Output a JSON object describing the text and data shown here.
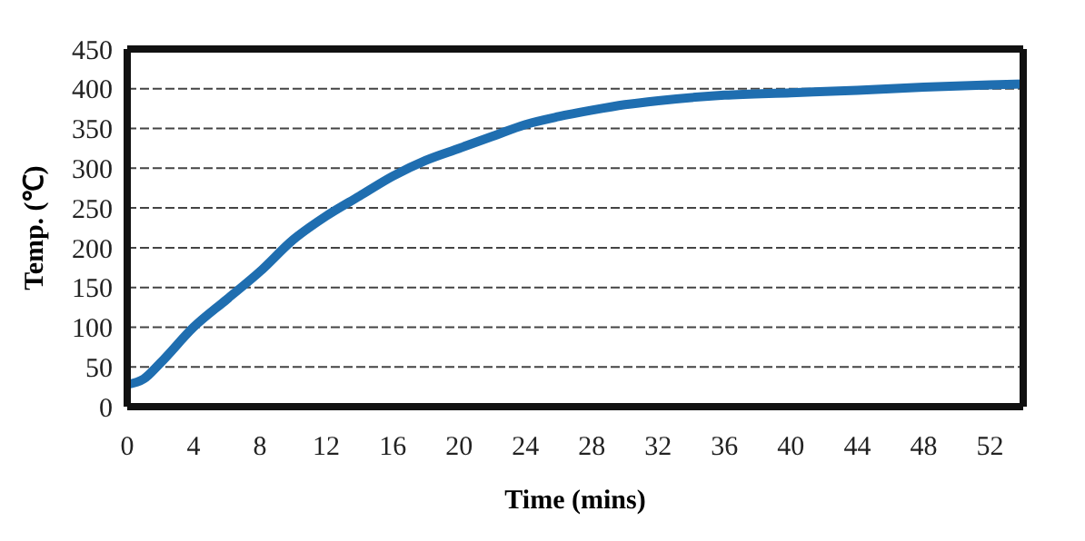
{
  "chart_data": {
    "type": "line",
    "xlabel": "Time (mins)",
    "ylabel": "Temp. (℃)",
    "x": [
      0,
      1,
      2,
      4,
      6,
      8,
      10,
      12,
      14,
      16,
      18,
      20,
      22,
      24,
      26,
      28,
      30,
      32,
      36,
      40,
      44,
      48,
      52,
      54
    ],
    "series": [
      {
        "color": "#1f6eb0",
        "values": [
          28,
          35,
          55,
          100,
          135,
          170,
          210,
          240,
          265,
          290,
          310,
          325,
          340,
          355,
          365,
          373,
          380,
          385,
          392,
          395,
          398,
          402,
          405,
          406
        ]
      }
    ],
    "xlim": [
      0,
      54
    ],
    "xticks": [
      0,
      4,
      8,
      12,
      16,
      20,
      24,
      28,
      32,
      36,
      40,
      44,
      48,
      52
    ],
    "ylim": [
      0,
      450
    ],
    "yticks": [
      0,
      50,
      100,
      150,
      200,
      250,
      300,
      350,
      400,
      450
    ],
    "grid": "y",
    "marker": "none",
    "line_style": "solid"
  }
}
